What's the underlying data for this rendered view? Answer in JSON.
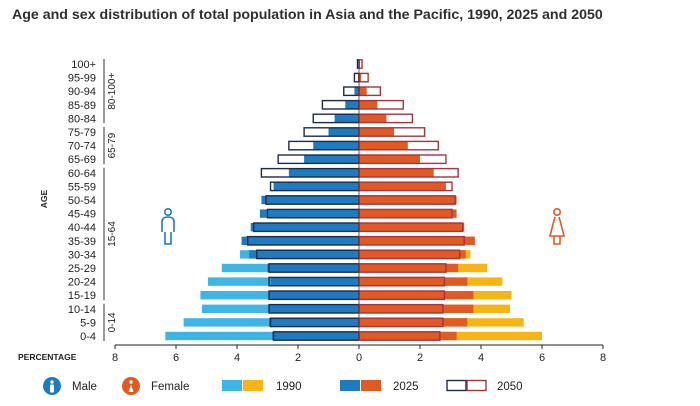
{
  "chart_data": {
    "type": "bar",
    "title": "Age and sex distribution of total population in Asia and the Pacific, 1990, 2025 and 2050",
    "ylabel": "AGE",
    "xlabel": "PERCENTAGE",
    "x_ticks": [
      "8",
      "6",
      "4",
      "2",
      "0",
      "2",
      "4",
      "6",
      "8"
    ],
    "xlim": [
      -8,
      8
    ],
    "categories": [
      "100+",
      "95-99",
      "90-94",
      "85-89",
      "80-84",
      "75-79",
      "70-74",
      "65-69",
      "60-64",
      "55-59",
      "50-54",
      "45-49",
      "40-44",
      "35-39",
      "30-34",
      "25-29",
      "20-24",
      "15-19",
      "10-14",
      "5-9",
      "0-4"
    ],
    "age_groups": [
      {
        "label": "80-100+",
        "from": "100+",
        "to": "80-84"
      },
      {
        "label": "65-79",
        "from": "75-79",
        "to": "65-69"
      },
      {
        "label": "15-64",
        "from": "60-64",
        "to": "15-19"
      },
      {
        "label": "0-14",
        "from": "10-14",
        "to": "0-4"
      }
    ],
    "series": [
      {
        "name": "1990",
        "sex": "Male",
        "style": "light",
        "color": "#3fb5e6",
        "values": [
          0,
          0,
          0.02,
          0.1,
          0.25,
          0.5,
          0.8,
          1.2,
          1.6,
          2.0,
          2.4,
          2.8,
          3.3,
          3.75,
          3.9,
          4.5,
          4.95,
          5.2,
          5.15,
          5.75,
          6.35
        ]
      },
      {
        "name": "1990",
        "sex": "Female",
        "style": "light",
        "color": "#f6b515",
        "values": [
          0,
          0,
          0.03,
          0.12,
          0.3,
          0.6,
          0.9,
          1.3,
          1.7,
          2.1,
          2.4,
          2.8,
          3.3,
          3.5,
          3.65,
          4.2,
          4.7,
          5.0,
          4.95,
          5.4,
          6.0
        ]
      },
      {
        "name": "2025",
        "sex": "Male",
        "style": "solid",
        "color": "#1f7bc0",
        "values": [
          0.01,
          0.03,
          0.15,
          0.45,
          0.8,
          1.0,
          1.5,
          1.8,
          2.3,
          2.8,
          3.2,
          3.25,
          3.55,
          3.85,
          3.6,
          3.0,
          2.9,
          2.95,
          2.95,
          2.95,
          2.85
        ]
      },
      {
        "name": "2025",
        "sex": "Female",
        "style": "solid",
        "color": "#e05a24",
        "values": [
          0.02,
          0.07,
          0.25,
          0.6,
          0.9,
          1.15,
          1.6,
          2.0,
          2.45,
          2.85,
          3.2,
          3.2,
          3.45,
          3.8,
          3.5,
          3.25,
          3.55,
          3.75,
          3.75,
          3.55,
          3.2
        ]
      },
      {
        "name": "2050",
        "sex": "Male",
        "style": "outline",
        "color": "#1d2b4d",
        "values": [
          0.05,
          0.15,
          0.5,
          1.2,
          1.5,
          1.8,
          2.3,
          2.65,
          3.2,
          2.9,
          3.05,
          3.0,
          3.45,
          3.65,
          3.35,
          2.95,
          2.95,
          2.95,
          2.95,
          2.9,
          2.8
        ]
      },
      {
        "name": "2050",
        "sex": "Female",
        "style": "outline",
        "color": "#a8323e",
        "values": [
          0.1,
          0.3,
          0.7,
          1.45,
          1.75,
          2.15,
          2.6,
          2.85,
          3.25,
          3.05,
          3.15,
          3.05,
          3.4,
          3.45,
          3.3,
          2.85,
          2.8,
          2.8,
          2.75,
          2.75,
          2.65
        ]
      }
    ]
  },
  "legend": {
    "male_label": "Male",
    "female_label": "Female",
    "year_1990": "1990",
    "year_2025": "2025",
    "year_2050": "2050",
    "male_icon": "male-person-icon",
    "female_icon": "female-person-icon"
  },
  "colors": {
    "male_1990": "#3fb5e6",
    "female_1990": "#f6b515",
    "male_2025": "#1f7bc0",
    "female_2025": "#e05a24",
    "male_2050_outline": "#1d2b4d",
    "female_2050_outline": "#a8323e",
    "male_icon": "#1f7bc0",
    "female_icon": "#e05a24"
  }
}
